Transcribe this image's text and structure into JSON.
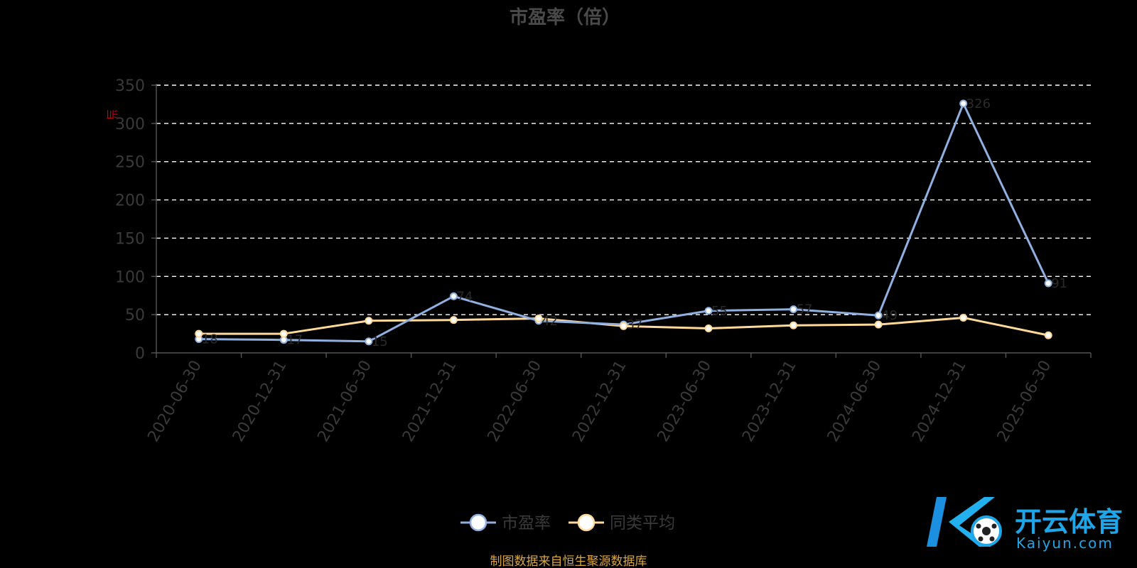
{
  "chart_data": {
    "type": "line",
    "title": "市盈率（倍）",
    "ylabel_mark": "当",
    "categories": [
      "2020-06-30",
      "2020-12-31",
      "2021-06-30",
      "2021-12-31",
      "2022-06-30",
      "2022-12-31",
      "2023-06-30",
      "2023-12-31",
      "2024-06-30",
      "2024-12-31",
      "2025-06-30"
    ],
    "ylim": [
      0,
      350
    ],
    "yticks": [
      "0",
      "50",
      "100",
      "150",
      "200",
      "250",
      "300",
      "350"
    ],
    "grid": true,
    "legend_position": "bottom-center",
    "series": [
      {
        "name": "市盈率",
        "color": "#8fb0e0",
        "values": [
          18.0,
          17.0,
          15.0,
          74.0,
          42.0,
          37.0,
          55.0,
          57.0,
          49.0,
          326.0,
          91.0
        ]
      },
      {
        "name": "同类平均",
        "color": "#ffd999",
        "values": [
          25.0,
          25.0,
          42.0,
          43.0,
          45.0,
          35.0,
          32.0,
          36.0,
          37.0,
          46.0,
          23.0
        ]
      }
    ],
    "source_note": "制图数据来自恒生聚源数据库"
  },
  "brand": {
    "logo_letter": "K",
    "name": "开云体育",
    "url": "Kaiyun.com"
  }
}
